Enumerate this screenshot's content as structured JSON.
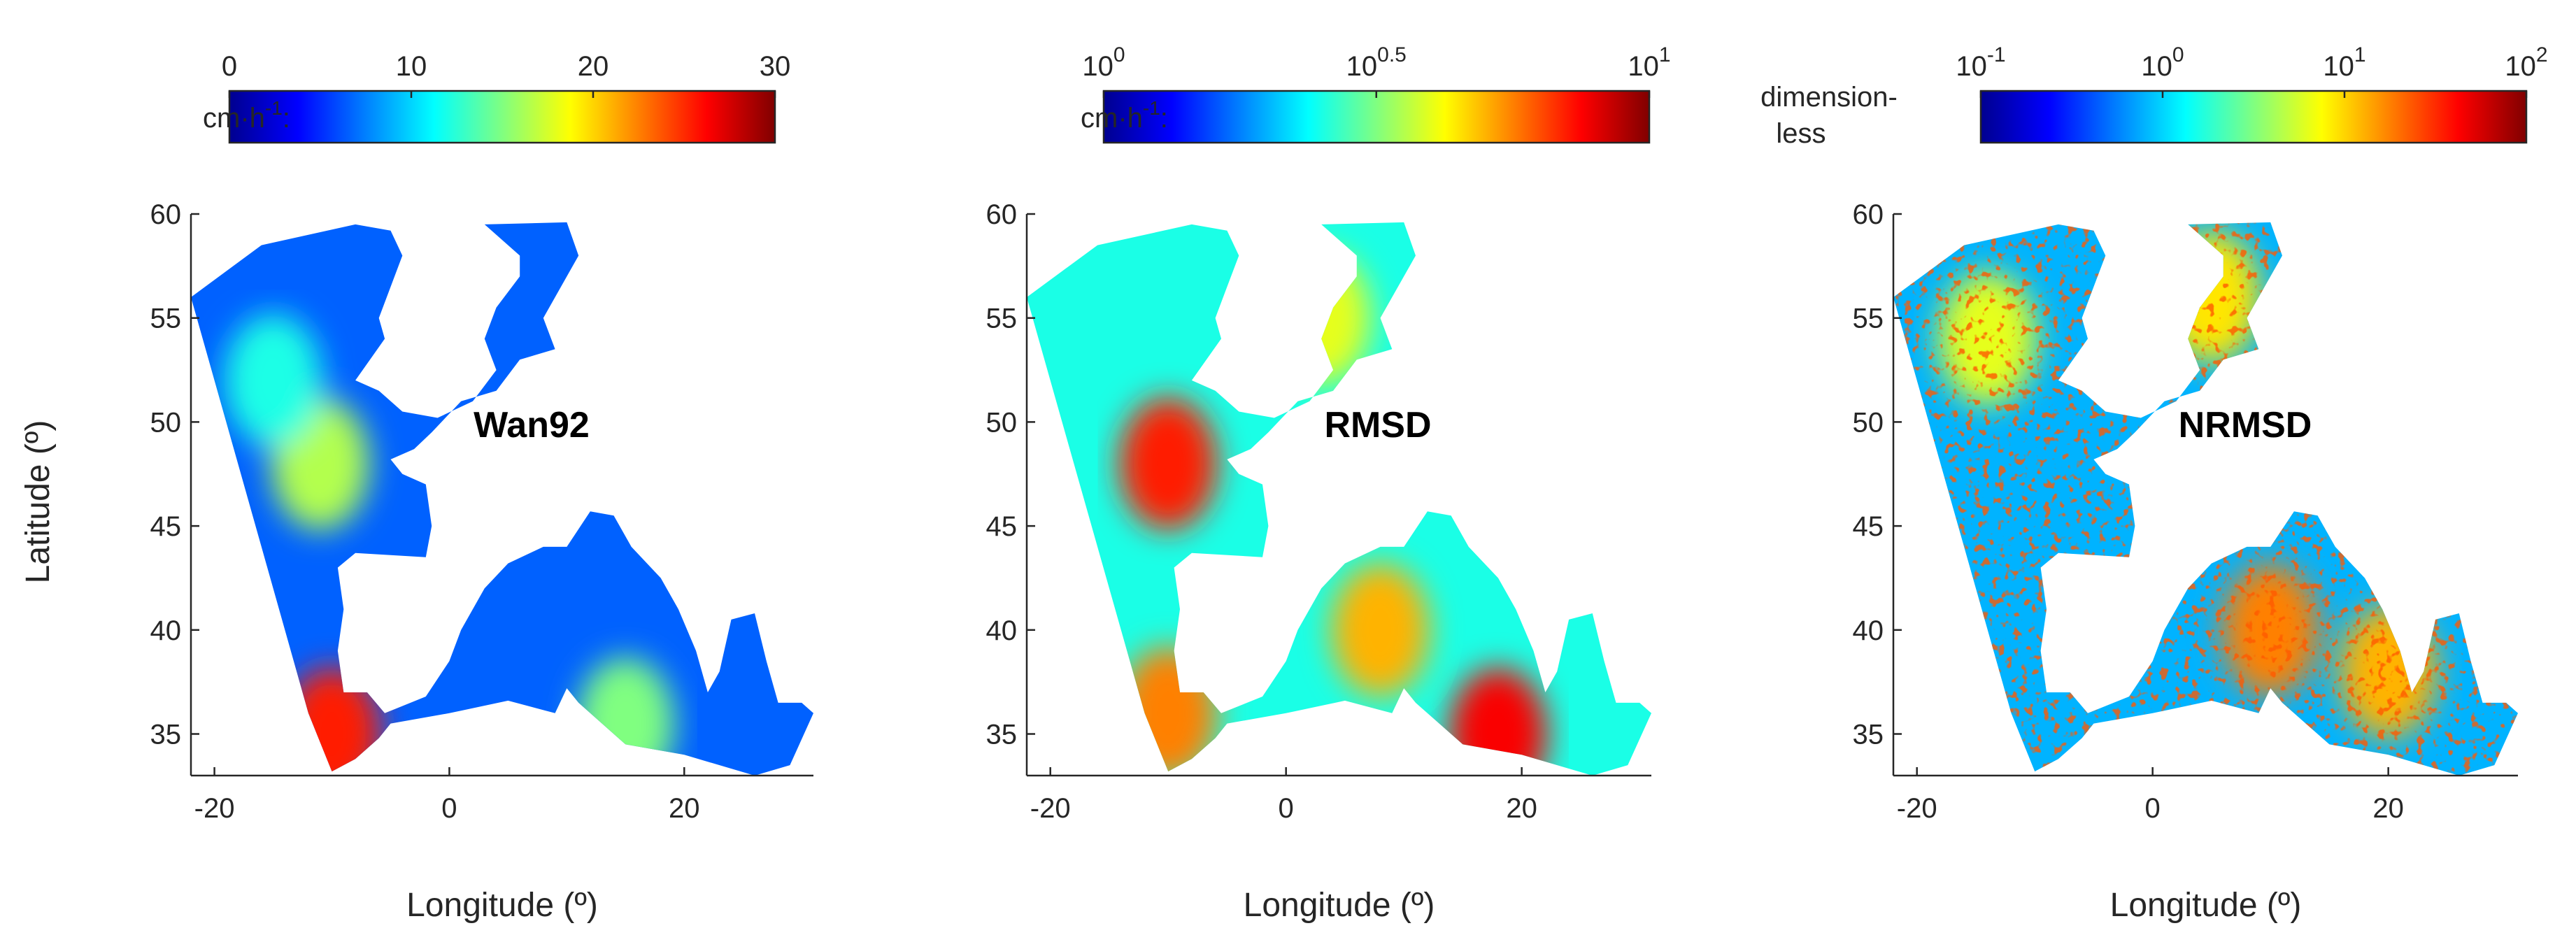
{
  "colors": {
    "colormap": "jet",
    "jet_stops": [
      "#00008f",
      "#0000ff",
      "#0080ff",
      "#00ffff",
      "#80ff80",
      "#ffff00",
      "#ff8000",
      "#ff0000",
      "#800000"
    ]
  },
  "chart_data": [
    {
      "type": "heatmap",
      "panel_label": "Wan92",
      "xlabel": "Longitude (º)",
      "ylabel": "Latitude (º)",
      "xlim": [
        -22,
        31
      ],
      "ylim": [
        33,
        60
      ],
      "xticks": [
        -20,
        0,
        20
      ],
      "xtick_labels": [
        "-20",
        "0",
        "20"
      ],
      "yticks": [
        35,
        40,
        45,
        50,
        55,
        60
      ],
      "ytick_labels": [
        "35",
        "40",
        "45",
        "50",
        "55",
        "60"
      ],
      "colorbar": {
        "unit_label": "cm·h",
        "unit_superscript": "-1",
        "unit_suffix": ":",
        "scale": "linear",
        "range": [
          0,
          30
        ],
        "ticks": [
          {
            "value": 0,
            "base": "0",
            "exp": ""
          },
          {
            "value": 10,
            "base": "10",
            "exp": ""
          },
          {
            "value": 20,
            "base": "20",
            "exp": ""
          },
          {
            "value": 30,
            "base": "30",
            "exp": ""
          }
        ]
      },
      "hotspots": [
        {
          "lon": -11,
          "lat": 48,
          "value": 0.55
        },
        {
          "lon": -10,
          "lat": 35,
          "value": 0.85
        },
        {
          "lon": 15,
          "lat": 35.5,
          "value": 0.5
        },
        {
          "lon": -15,
          "lat": 52,
          "value": 0.4
        }
      ],
      "background_value": 0.22
    },
    {
      "type": "heatmap",
      "panel_label": "RMSD",
      "xlabel": "Longitude (º)",
      "ylabel": "",
      "xlim": [
        -22,
        31
      ],
      "ylim": [
        33,
        60
      ],
      "xticks": [
        -20,
        0,
        20
      ],
      "xtick_labels": [
        "-20",
        "0",
        "20"
      ],
      "yticks": [
        35,
        40,
        45,
        50,
        55,
        60
      ],
      "ytick_labels": [
        "35",
        "40",
        "45",
        "50",
        "55",
        "60"
      ],
      "colorbar": {
        "unit_label": "cm·h",
        "unit_superscript": "-1",
        "unit_suffix": ":",
        "scale": "log",
        "range": [
          1,
          10
        ],
        "ticks": [
          {
            "value": 1,
            "base": "10",
            "exp": "0"
          },
          {
            "value": 3.16,
            "base": "10",
            "exp": "0.5"
          },
          {
            "value": 10,
            "base": "10",
            "exp": "1"
          }
        ]
      },
      "hotspots": [
        {
          "lon": -10,
          "lat": 48,
          "value": 0.85
        },
        {
          "lon": 18,
          "lat": 35,
          "value": 0.88
        },
        {
          "lon": 8,
          "lat": 40,
          "value": 0.7
        },
        {
          "lon": 3,
          "lat": 55,
          "value": 0.6
        },
        {
          "lon": -10,
          "lat": 36,
          "value": 0.75
        }
      ],
      "background_value": 0.4
    },
    {
      "type": "heatmap",
      "panel_label": "NRMSD",
      "xlabel": "Longitude (º)",
      "ylabel": "",
      "xlim": [
        -22,
        31
      ],
      "ylim": [
        33,
        60
      ],
      "xticks": [
        -20,
        0,
        20
      ],
      "xtick_labels": [
        "-20",
        "0",
        "20"
      ],
      "yticks": [
        35,
        40,
        45,
        50,
        55,
        60
      ],
      "ytick_labels": [
        "35",
        "40",
        "45",
        "50",
        "55",
        "60"
      ],
      "colorbar": {
        "unit_label": "dimension-",
        "unit_label_line2": "less",
        "scale": "log",
        "range": [
          0.1,
          100
        ],
        "ticks": [
          {
            "value": 0.1,
            "base": "10",
            "exp": "-1"
          },
          {
            "value": 1,
            "base": "10",
            "exp": "0"
          },
          {
            "value": 10,
            "base": "10",
            "exp": "1"
          },
          {
            "value": 100,
            "base": "10",
            "exp": "2"
          }
        ]
      },
      "hotspots": [
        {
          "lon": 10,
          "lat": 40,
          "value": 0.75
        },
        {
          "lon": 20,
          "lat": 38,
          "value": 0.7
        },
        {
          "lon": 5,
          "lat": 56,
          "value": 0.65
        },
        {
          "lon": -14,
          "lat": 54,
          "value": 0.6
        }
      ],
      "background_value": 0.3
    }
  ]
}
